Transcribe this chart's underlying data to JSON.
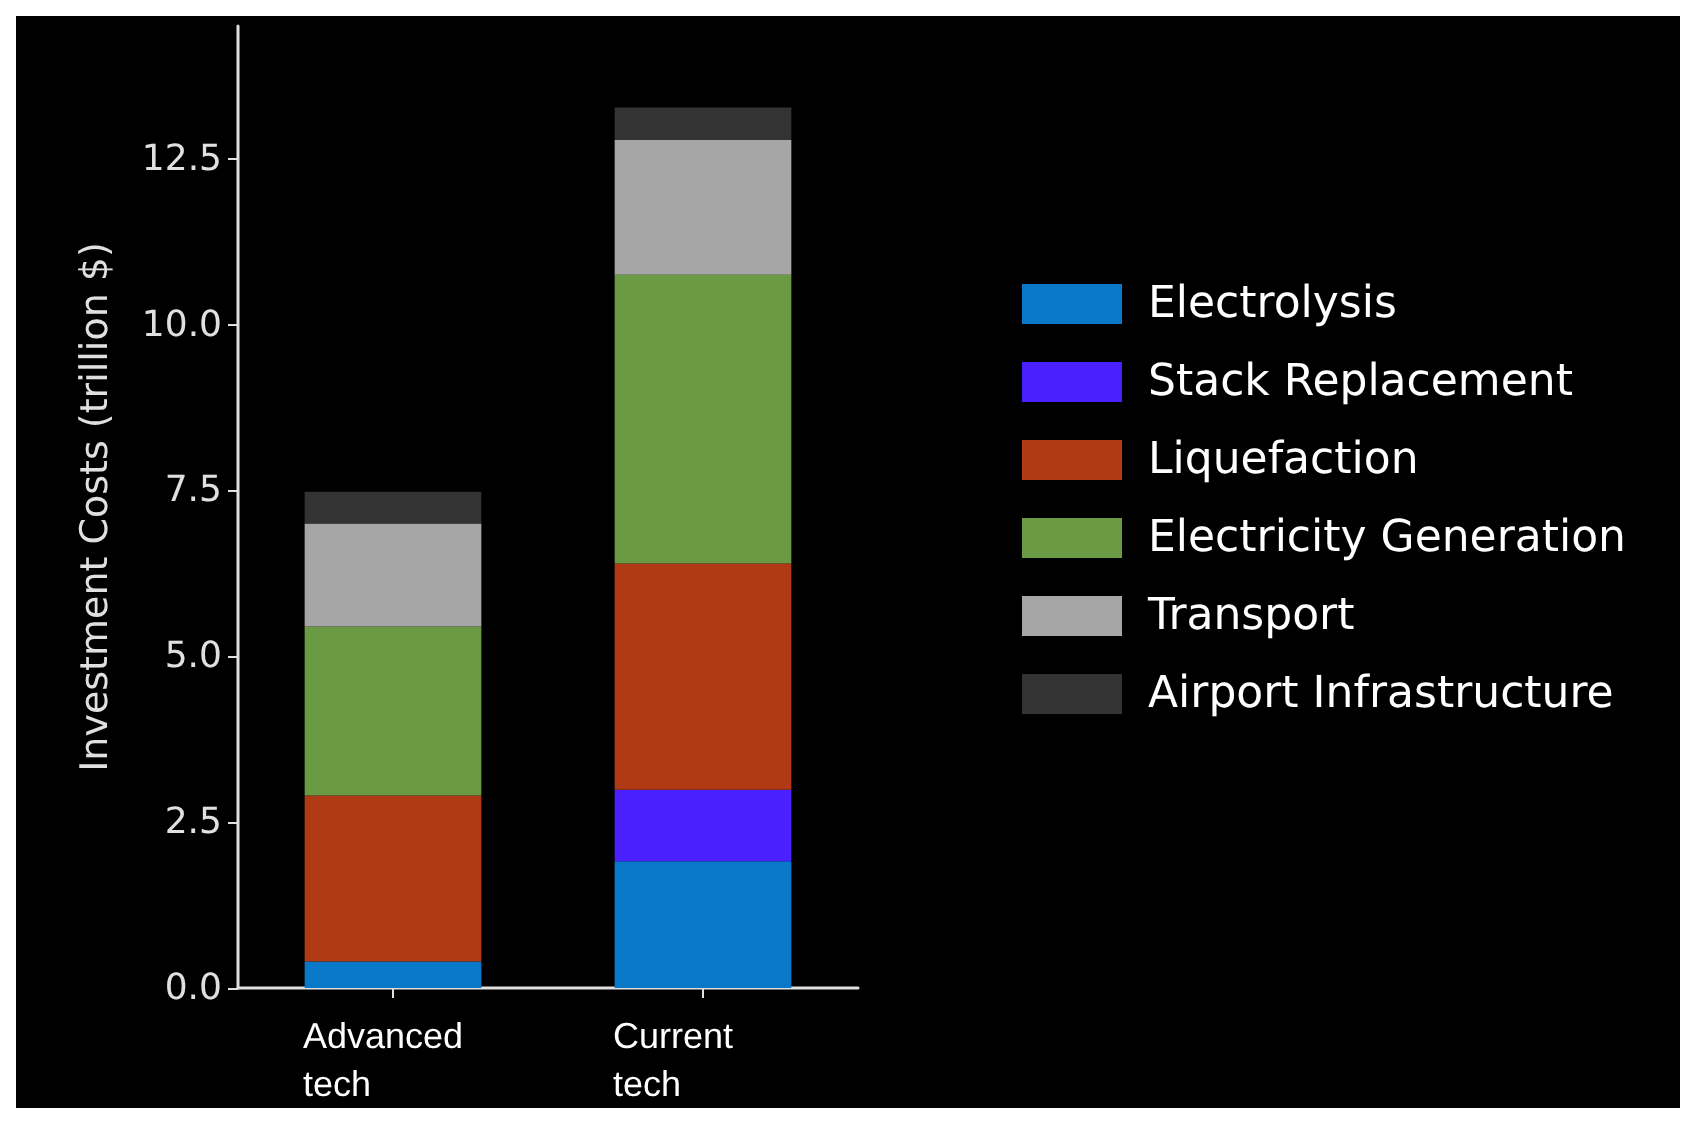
{
  "chart_data": {
    "type": "bar",
    "stacked": true,
    "ylabel": "Investment Costs (trillion $)",
    "categories": [
      "Advanced tech",
      "Current tech"
    ],
    "ylim": [
      0,
      14.5
    ],
    "yticks": [
      {
        "value": 0,
        "label": "0.0"
      },
      {
        "value": 2.5,
        "label": "2.5"
      },
      {
        "value": 5,
        "label": "5.0"
      },
      {
        "value": 7.5,
        "label": "7.5"
      },
      {
        "value": 10,
        "label": "10.0"
      },
      {
        "value": 12.5,
        "label": "12.5"
      }
    ],
    "legend": "right",
    "grid": false,
    "series": [
      {
        "name": "Electrolysis",
        "color": "#0a78c8",
        "values": [
          0.4,
          1.91
        ]
      },
      {
        "name": "Stack Replacement",
        "color": "#4a20ff",
        "values": [
          0,
          1.08
        ]
      },
      {
        "name": "Liquefaction",
        "color": "#b03a14",
        "values": [
          2.5,
          3.41
        ]
      },
      {
        "name": "Electricity Generation",
        "color": "#6a9a44",
        "values": [
          2.55,
          4.35
        ]
      },
      {
        "name": "Transport",
        "color": "#a6a6a6",
        "values": [
          1.55,
          2.03
        ]
      },
      {
        "name": "Airport Infrastructure",
        "color": "#333333",
        "values": [
          0.48,
          0.49
        ]
      }
    ]
  }
}
